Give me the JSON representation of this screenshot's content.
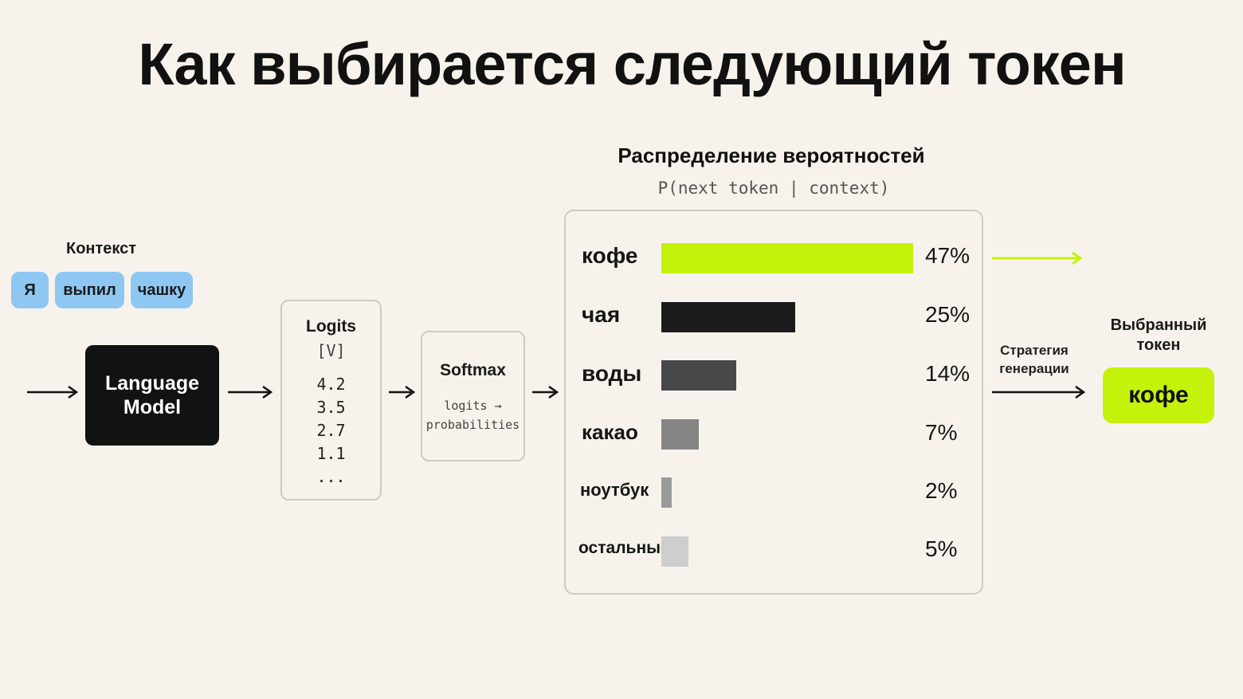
{
  "title": "Как выбирается следующий токен",
  "context": {
    "label": "Контекст",
    "tokens": [
      "Я",
      "выпил",
      "чашку"
    ]
  },
  "model": {
    "label": "Language\nModel"
  },
  "logits": {
    "title": "Logits",
    "shape": "[V]",
    "values": [
      "4.2",
      "3.5",
      "2.7",
      "1.1",
      "..."
    ]
  },
  "softmax": {
    "title": "Softmax",
    "subtitle": "logits →\nprobabilities"
  },
  "distribution": {
    "title": "Распределение вероятностей",
    "subtitle": "P(next token | context)"
  },
  "chart_data": {
    "type": "bar",
    "orientation": "horizontal",
    "categories": [
      "кофе",
      "чая",
      "воды",
      "какао",
      "ноутбук",
      "остальные"
    ],
    "values": [
      47,
      25,
      14,
      7,
      2,
      5
    ],
    "value_labels": [
      "47%",
      "25%",
      "14%",
      "7%",
      "2%",
      "5%"
    ],
    "unit": "%",
    "colors": [
      "#c5f20a",
      "#1b1b1b",
      "#48484a",
      "#858585",
      "#9a9a9a",
      "#cecece"
    ]
  },
  "strategy": {
    "label": "Стратегия\nгенерации"
  },
  "chosen": {
    "label": "Выбранный\nтокен",
    "token": "кофе"
  },
  "colors": {
    "background": "#f7f3ec",
    "accent": "#c5f20a",
    "chip": "#8ec8f2",
    "model_box": "#121212"
  }
}
